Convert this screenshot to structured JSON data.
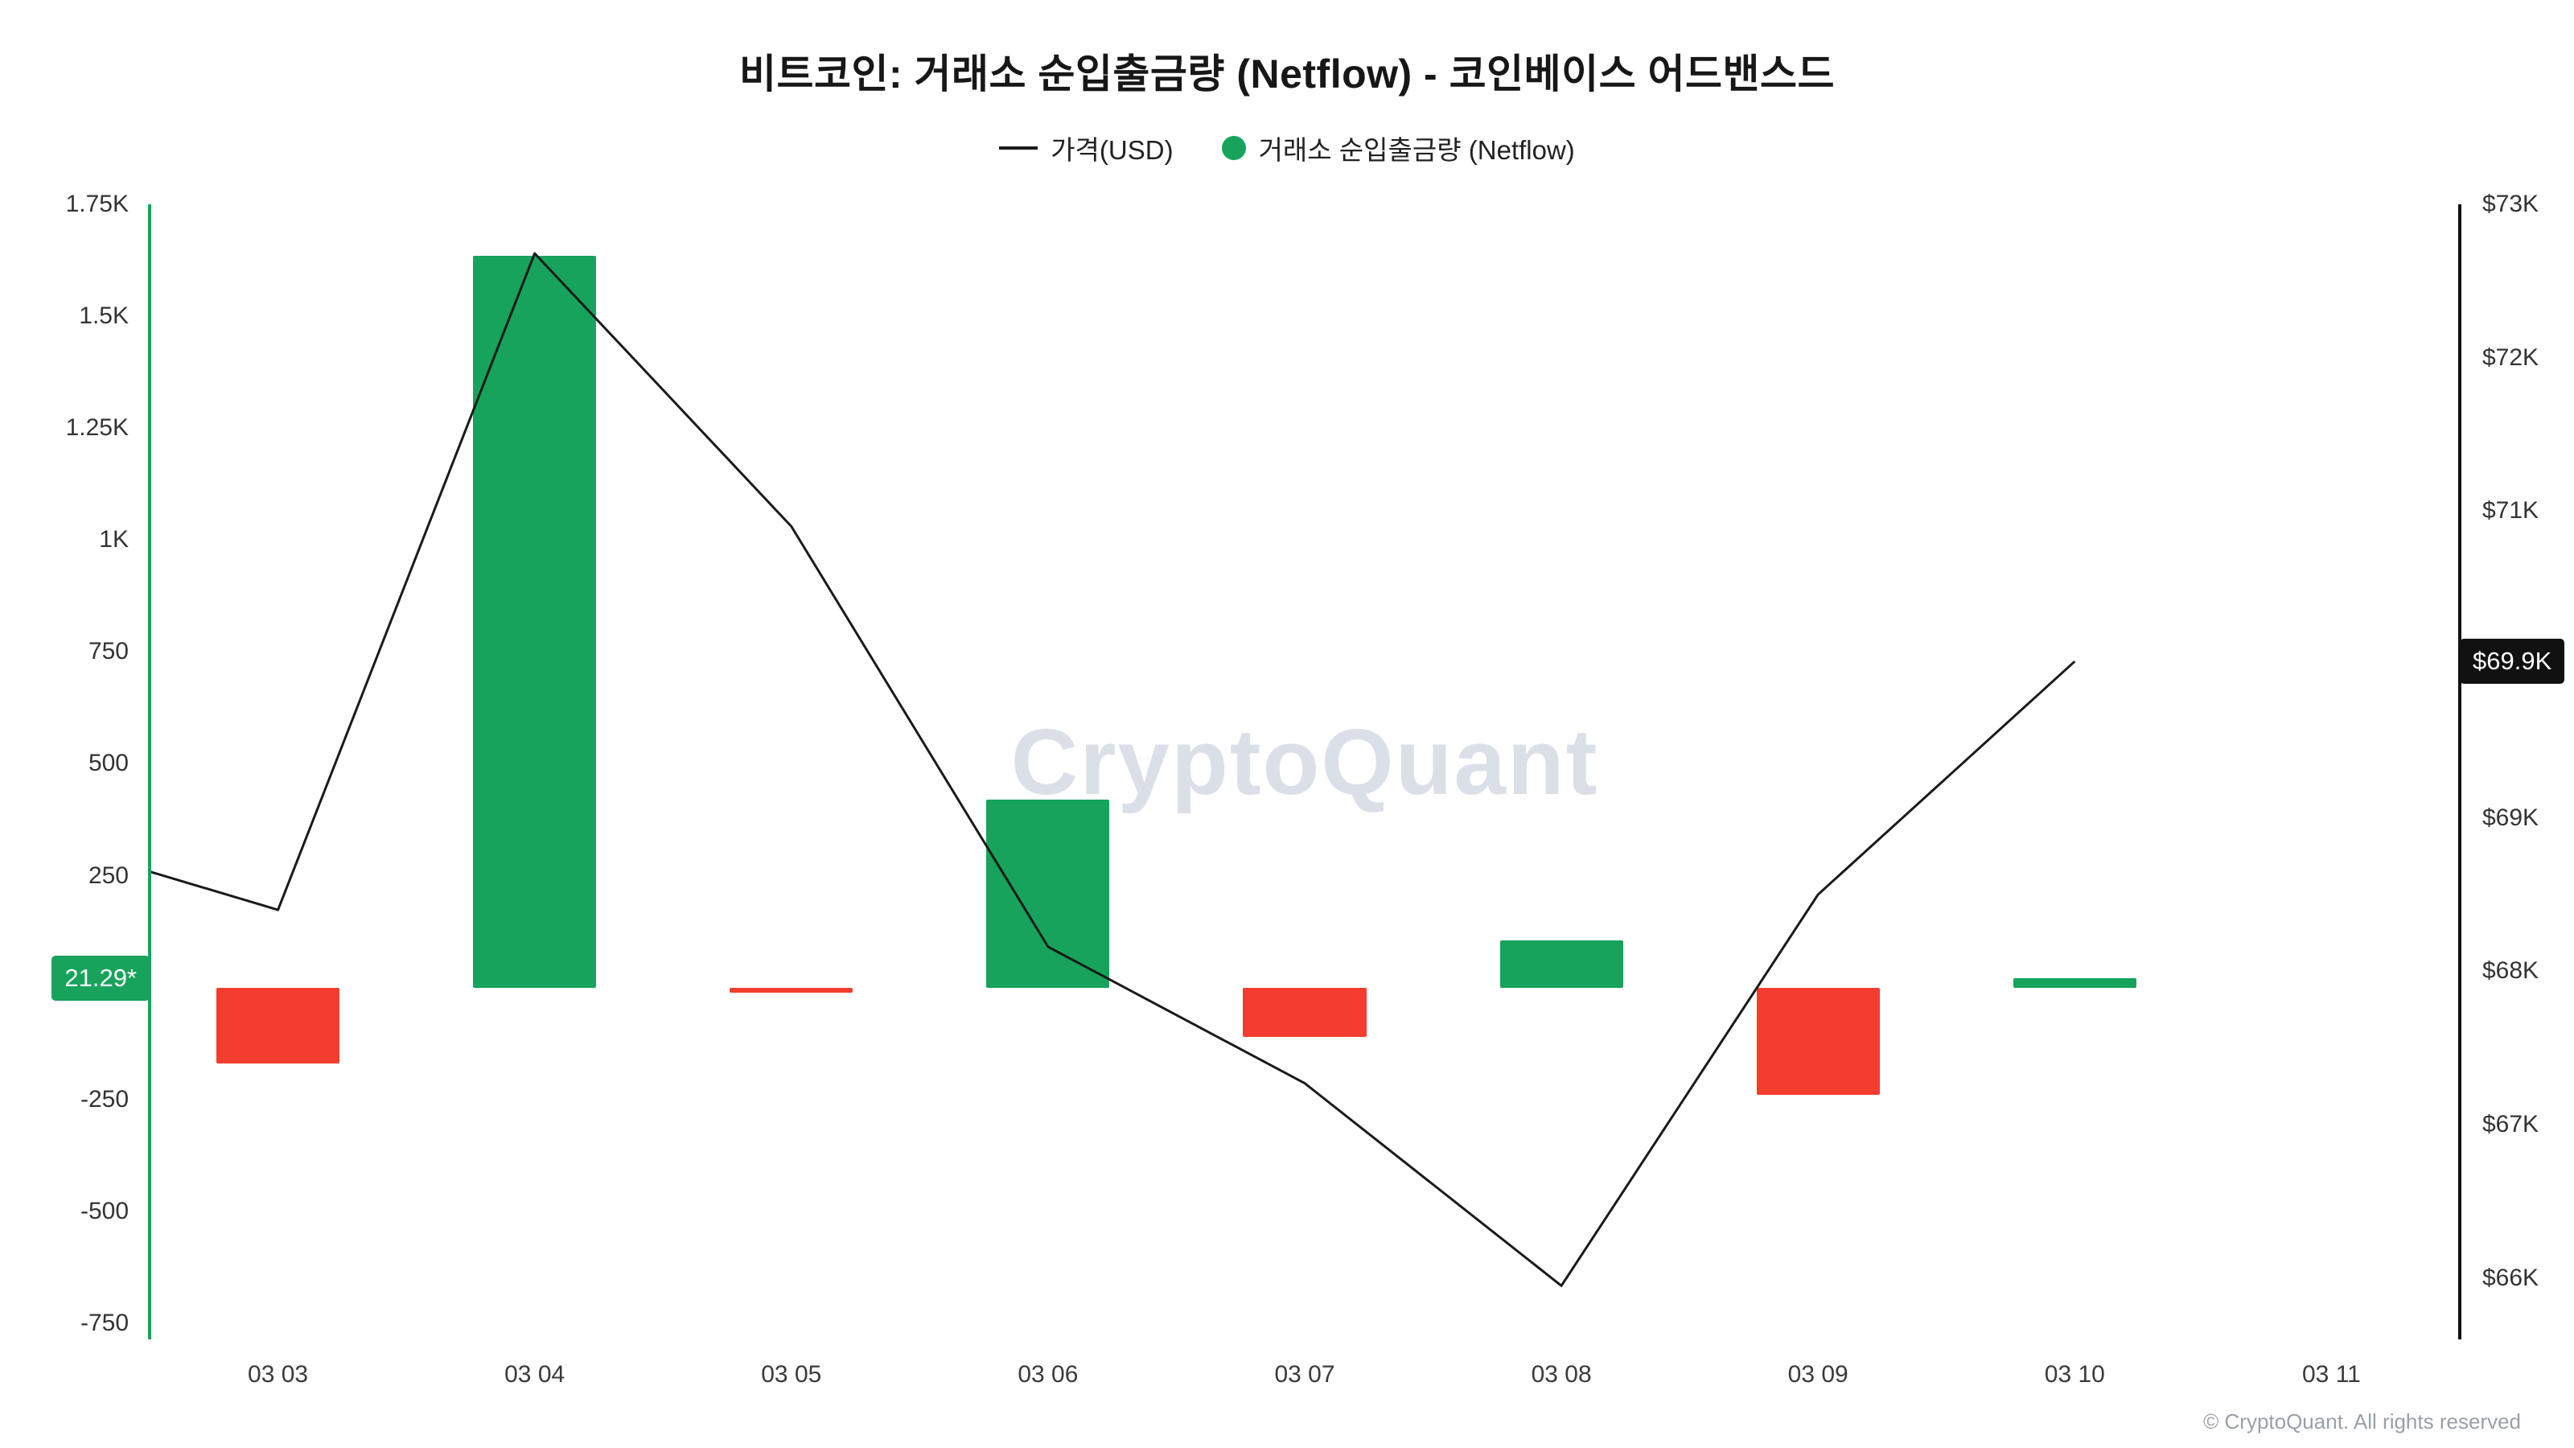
{
  "title": "비트코인: 거래소 순입출금량 (Netflow) - 코인베이스 어드밴스드",
  "legend": {
    "price_label": "가격(USD)",
    "netflow_label": "거래소 순입출금량 (Netflow)"
  },
  "badges": {
    "netflow": "21.29*",
    "price": "$69.9K"
  },
  "watermark": "CryptoQuant",
  "footer": "© CryptoQuant. All rights reserved",
  "colors": {
    "positive": "#17a35c",
    "negative": "#f43c2f",
    "price_line": "#1a1a1a",
    "left_axis_line": "#17a35c",
    "right_axis_line": "#111111",
    "badge_netflow_bg": "#17a35c",
    "badge_price_bg": "#111111",
    "watermark": "#dbe0e8"
  },
  "chart_data": {
    "type": "bar",
    "title": "비트코인: 거래소 순입출금량 (Netflow) - 코인베이스 어드밴스드",
    "grid": false,
    "legend_position": "top",
    "categories": [
      "03 03",
      "03 04",
      "03 05",
      "03 06",
      "03 07",
      "03 08",
      "03 09",
      "03 10",
      "03 11"
    ],
    "series": [
      {
        "name": "거래소 순입출금량 (Netflow)",
        "type": "bar",
        "axis": "left",
        "values": [
          -170,
          1635,
          -12,
          420,
          -110,
          105,
          -240,
          21.29,
          null
        ]
      },
      {
        "name": "가격(USD)",
        "type": "line",
        "axis": "right",
        "values": [
          68400,
          72680,
          70900,
          68160,
          67270,
          65950,
          68500,
          70020,
          null
        ],
        "left_edge_value": 68650
      }
    ],
    "left_axis": {
      "max": 1750,
      "min": -786,
      "ticks": [
        1750,
        1500,
        1250,
        1000,
        750,
        500,
        250,
        -250,
        -500,
        -750
      ],
      "tick_labels": [
        "1.75K",
        "1.5K",
        "1.25K",
        "1K",
        "750",
        "500",
        "250",
        "-250",
        "-500",
        "-750"
      ],
      "current_value": 21.29,
      "current_label": "21.29*"
    },
    "right_axis": {
      "max": 73000,
      "min": 65600,
      "ticks": [
        73000,
        72000,
        71000,
        69000,
        68000,
        67000,
        66000
      ],
      "tick_labels": [
        "$73K",
        "$72K",
        "$71K",
        "$69K",
        "$68K",
        "$67K",
        "$66K"
      ],
      "current_value": 69900,
      "current_label": "$69.9K"
    }
  }
}
